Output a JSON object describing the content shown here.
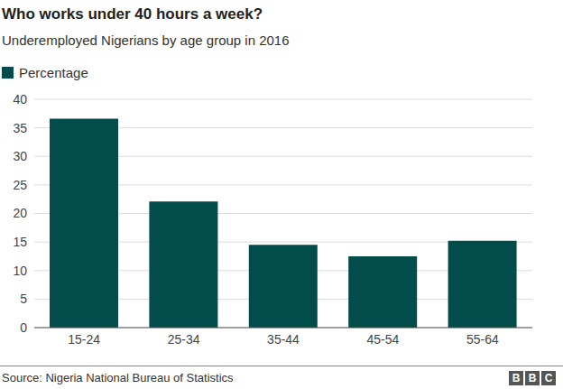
{
  "chart_data": {
    "type": "bar",
    "title": "Who works under 40 hours a week?",
    "subtitle": "Underemployed Nigerians by age group in 2016",
    "categories": [
      "15-24",
      "25-34",
      "35-44",
      "45-54",
      "55-64"
    ],
    "series": [
      {
        "name": "Percentage",
        "color": "#024c4b",
        "values": [
          36.6,
          22.1,
          14.5,
          12.5,
          15.2
        ]
      }
    ],
    "ylim": [
      0,
      40
    ],
    "yticks": [
      0,
      5,
      10,
      15,
      20,
      25,
      30,
      35,
      40
    ],
    "grid": true,
    "source": "Source: Nigeria National Bureau of Statistics",
    "credit": "BBC"
  }
}
